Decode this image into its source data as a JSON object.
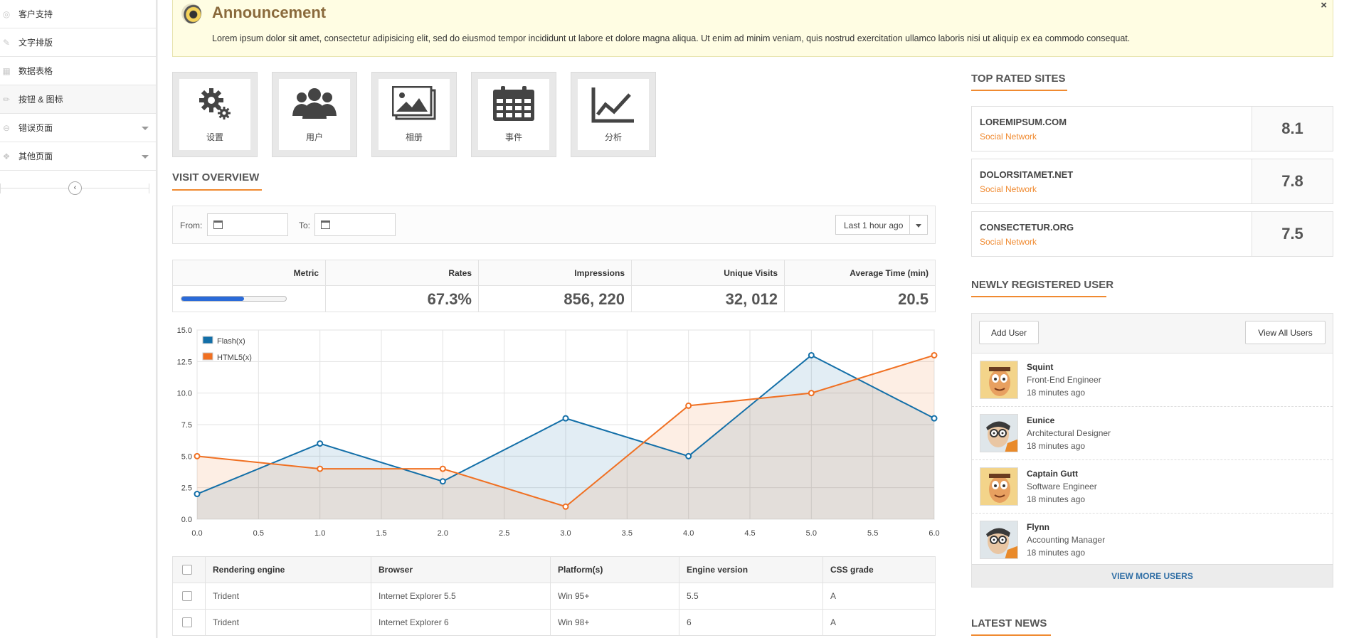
{
  "sidebar": {
    "items": [
      {
        "label": "客户支持",
        "icon": "support-icon",
        "glyph": "◎",
        "active": false,
        "has_submenu": false
      },
      {
        "label": "文字排版",
        "icon": "pen-icon",
        "glyph": "✎",
        "active": false,
        "has_submenu": false
      },
      {
        "label": "数据表格",
        "icon": "table-icon",
        "glyph": "▦",
        "active": false,
        "has_submenu": false
      },
      {
        "label": "按钮 & 图标",
        "icon": "pencil-icon",
        "glyph": "✏",
        "active": true,
        "has_submenu": false
      },
      {
        "label": "错误页面",
        "icon": "error-icon",
        "glyph": "⊖",
        "active": false,
        "has_submenu": true
      },
      {
        "label": "其他页面",
        "icon": "pages-icon",
        "glyph": "❖",
        "active": false,
        "has_submenu": true
      }
    ],
    "collapse_glyph": "‹"
  },
  "announcement": {
    "title": "Announcement",
    "text": "Lorem ipsum dolor sit amet, consectetur adipisicing elit, sed do eiusmod tempor incididunt ut labore et dolore magna aliqua. Ut enim ad minim veniam, quis nostrud exercitation ullamco laboris nisi ut aliquip ex ea commodo consequat.",
    "close": "×"
  },
  "shortcuts": [
    {
      "label": "设置",
      "icon": "gear-icon"
    },
    {
      "label": "用户",
      "icon": "users-icon"
    },
    {
      "label": "相册",
      "icon": "gallery-icon"
    },
    {
      "label": "事件",
      "icon": "calendar-icon"
    },
    {
      "label": "分析",
      "icon": "line-chart-icon"
    }
  ],
  "visit_overview": {
    "title": "VISIT OVERVIEW",
    "from_label": "From:",
    "to_label": "To:",
    "range_value": "Last 1 hour ago"
  },
  "metrics": {
    "headers": [
      "Metric",
      "Rates",
      "Impressions",
      "Unique Visits",
      "Average Time (min)"
    ],
    "progress_percent": 60,
    "values": [
      "67.3%",
      "856, 220",
      "32, 012",
      "20.5"
    ]
  },
  "chart_data": {
    "type": "area",
    "x": [
      0,
      1,
      2,
      3,
      4,
      5,
      6
    ],
    "series": [
      {
        "name": "Flash(x)",
        "color": "#136fa8",
        "values": [
          2,
          6,
          3,
          8,
          5,
          13,
          8
        ]
      },
      {
        "name": "HTML5(x)",
        "color": "#f07022",
        "values": [
          5,
          4,
          4,
          1,
          9,
          10,
          13
        ]
      }
    ],
    "xlim": [
      0,
      6
    ],
    "ylim": [
      0,
      15
    ],
    "x_ticks": [
      "0.0",
      "0.5",
      "1.0",
      "1.5",
      "2.0",
      "2.5",
      "3.0",
      "3.5",
      "4.0",
      "4.5",
      "5.0",
      "5.5",
      "6.0"
    ],
    "y_ticks": [
      "0.0",
      "2.5",
      "5.0",
      "7.5",
      "10.0",
      "12.5",
      "15.0"
    ],
    "legend_position": "top-left",
    "grid": true
  },
  "table": {
    "headers": [
      "Rendering engine",
      "Browser",
      "Platform(s)",
      "Engine version",
      "CSS grade"
    ],
    "rows": [
      [
        "Trident",
        "Internet Explorer 5.5",
        "Win 95+",
        "5.5",
        "A"
      ],
      [
        "Trident",
        "Internet Explorer 6",
        "Win 98+",
        "6",
        "A"
      ]
    ]
  },
  "top_rated": {
    "title": "TOP RATED SITES",
    "sites": [
      {
        "name": "LOREMIPSUM.COM",
        "category": "Social Network",
        "score": "8.1"
      },
      {
        "name": "DOLORSITAMET.NET",
        "category": "Social Network",
        "score": "7.8"
      },
      {
        "name": "CONSECTETUR.ORG",
        "category": "Social Network",
        "score": "7.5"
      }
    ]
  },
  "new_users": {
    "title": "NEWLY REGISTERED USER",
    "add_label": "Add User",
    "view_all_label": "View All Users",
    "users": [
      {
        "name": "Squint",
        "role": "Front-End Engineer",
        "time": "18 minutes ago",
        "avatar": "kid-avatar"
      },
      {
        "name": "Eunice",
        "role": "Architectural Designer",
        "time": "18 minutes ago",
        "avatar": "scientist-avatar"
      },
      {
        "name": "Captain Gutt",
        "role": "Software Engineer",
        "time": "18 minutes ago",
        "avatar": "kid-avatar"
      },
      {
        "name": "Flynn",
        "role": "Accounting Manager",
        "time": "18 minutes ago",
        "avatar": "scientist-avatar"
      }
    ],
    "more_label": "VIEW MORE USERS"
  },
  "latest_news": {
    "title": "LATEST NEWS"
  },
  "colors": {
    "accent": "#f08a30",
    "link": "#2f6ea5"
  }
}
